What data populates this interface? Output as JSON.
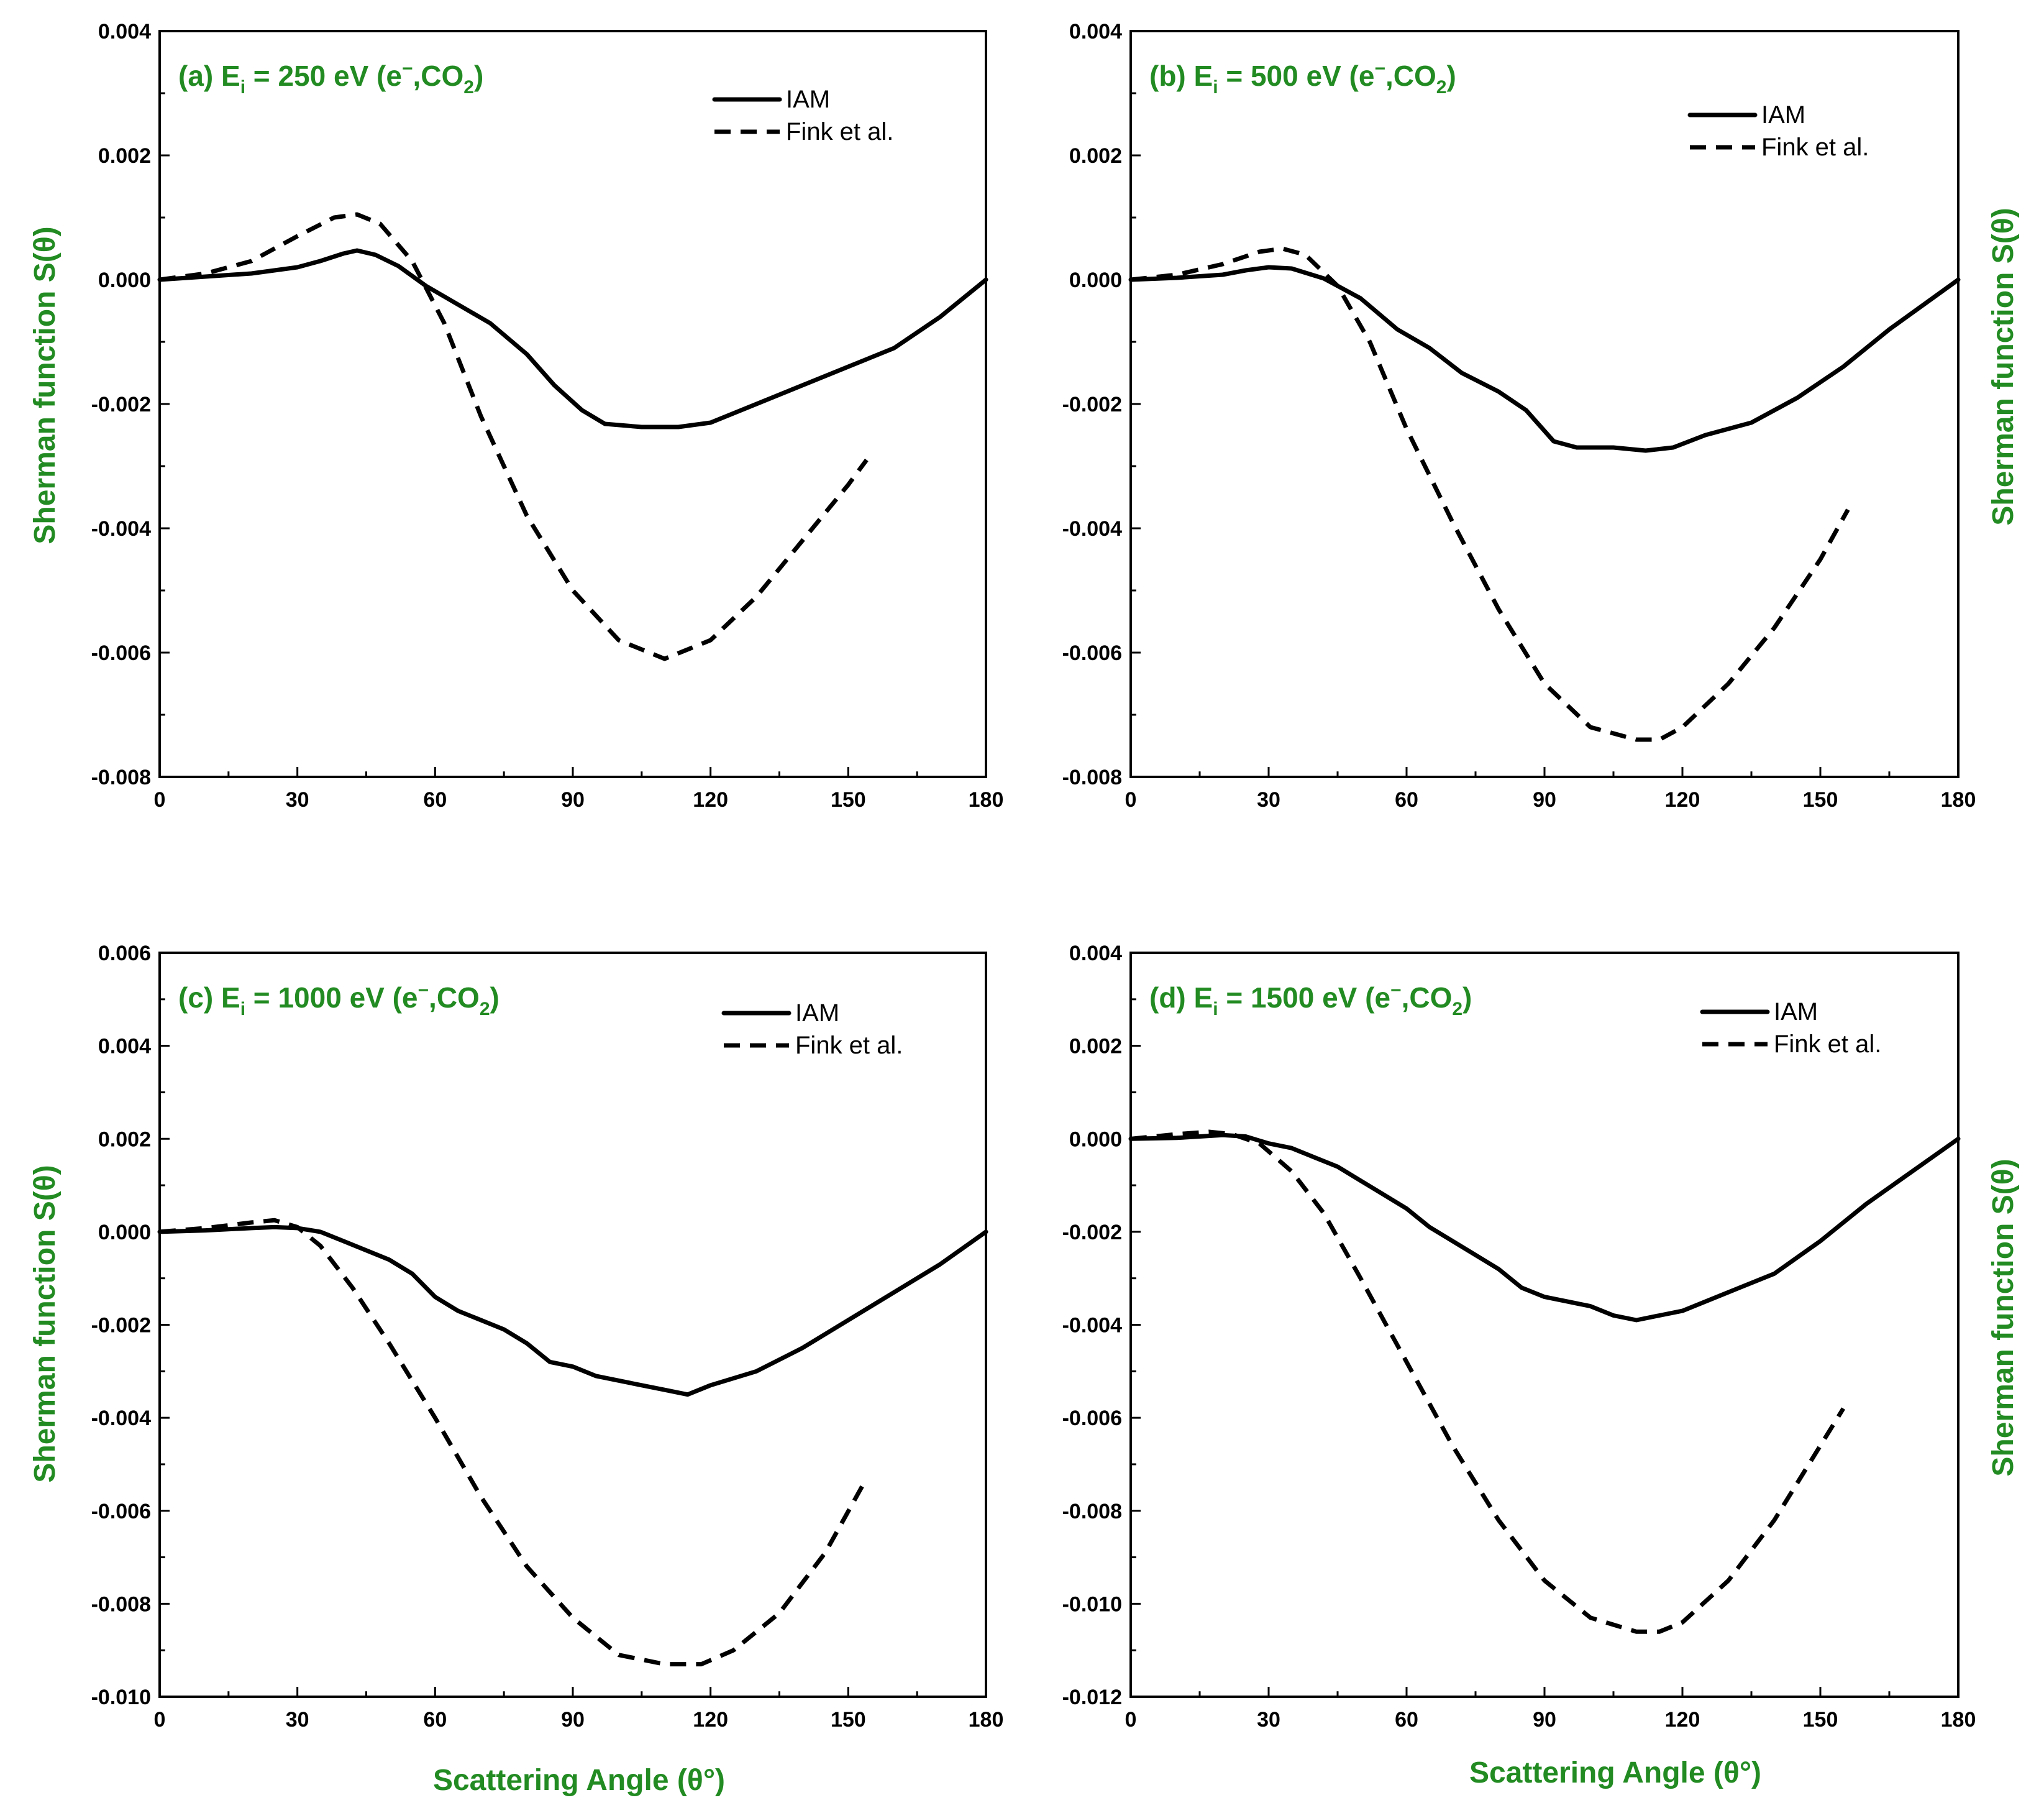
{
  "colors": {
    "axis_title": "#228B22",
    "panel_label": "#228B22",
    "series": "#000000"
  },
  "figure": {
    "xlabel_left": "Scattering Angle (θ°)",
    "xlabel_right": "Scattering Angle (θ°)",
    "ylabel_left_top": "Sherman function S(θ)",
    "ylabel_left_bottom": "Sherman function S(θ)",
    "ylabel_right_top": "Sherman function S(θ)",
    "ylabel_right_bottom": "Sherman function S(θ)"
  },
  "chart_data": [
    {
      "type": "line",
      "label_prefix": "(a) E",
      "label_sub": "i",
      "label_mid": " = 250 eV (e",
      "label_sup": "−",
      "label_mol": ",CO",
      "label_mol_sub": "2",
      "label_end": ")",
      "xlim": [
        0,
        180
      ],
      "ylim": [
        -0.008,
        0.004
      ],
      "xticks": [
        "0",
        "30",
        "60",
        "90",
        "120",
        "150",
        "180"
      ],
      "yticks": [
        "-0.008",
        "-0.006",
        "-0.004",
        "-0.002",
        "0.000",
        "0.002",
        "0.004"
      ],
      "legend": [
        "IAM",
        "Fink et al."
      ],
      "series": [
        {
          "name": "IAM",
          "style": "solid",
          "x": [
            0,
            10,
            20,
            30,
            35,
            40,
            43,
            47,
            52,
            58,
            65,
            72,
            80,
            86,
            92,
            97,
            105,
            113,
            120,
            130,
            140,
            150,
            160,
            170,
            180
          ],
          "y": [
            0,
            5e-05,
            0.0001,
            0.0002,
            0.0003,
            0.00042,
            0.00047,
            0.0004,
            0.00022,
            -0.0001,
            -0.0004,
            -0.0007,
            -0.0012,
            -0.0017,
            -0.0021,
            -0.00232,
            -0.00237,
            -0.00237,
            -0.0023,
            -0.002,
            -0.0017,
            -0.0014,
            -0.0011,
            -0.0006,
            0
          ]
        },
        {
          "name": "Fink et al.",
          "style": "dashed",
          "x": [
            0,
            10,
            20,
            30,
            38,
            43,
            48,
            55,
            62,
            70,
            80,
            90,
            100,
            110,
            120,
            130,
            140,
            150,
            154
          ],
          "y": [
            0,
            0.0001,
            0.0003,
            0.0007,
            0.001,
            0.00105,
            0.0009,
            0.0003,
            -0.0007,
            -0.0022,
            -0.0038,
            -0.005,
            -0.0058,
            -0.0061,
            -0.0058,
            -0.0051,
            -0.0042,
            -0.0033,
            -0.0029
          ]
        }
      ]
    },
    {
      "type": "line",
      "label_prefix": "(b) E",
      "label_sub": "i",
      "label_mid": " = 500 eV (e",
      "label_sup": "−",
      "label_mol": ",CO",
      "label_mol_sub": "2",
      "label_end": ")",
      "xlim": [
        0,
        180
      ],
      "ylim": [
        -0.008,
        0.004
      ],
      "xticks": [
        "0",
        "30",
        "60",
        "90",
        "120",
        "150",
        "180"
      ],
      "yticks": [
        "-0.008",
        "-0.006",
        "-0.004",
        "-0.002",
        "0.000",
        "0.002",
        "0.004"
      ],
      "legend": [
        "IAM",
        "Fink et al."
      ],
      "series": [
        {
          "name": "IAM",
          "style": "solid",
          "x": [
            0,
            10,
            20,
            25,
            30,
            35,
            42,
            50,
            58,
            65,
            72,
            80,
            86,
            92,
            97,
            105,
            112,
            118,
            125,
            135,
            145,
            155,
            165,
            180
          ],
          "y": [
            0,
            3e-05,
            8e-05,
            0.00015,
            0.0002,
            0.00018,
            2e-05,
            -0.0003,
            -0.0008,
            -0.0011,
            -0.0015,
            -0.0018,
            -0.0021,
            -0.0026,
            -0.0027,
            -0.0027,
            -0.00275,
            -0.0027,
            -0.0025,
            -0.0023,
            -0.0019,
            -0.0014,
            -0.0008,
            0
          ]
        },
        {
          "name": "Fink et al.",
          "style": "dashed",
          "x": [
            0,
            10,
            20,
            28,
            33,
            38,
            45,
            52,
            60,
            70,
            80,
            90,
            100,
            110,
            115,
            120,
            130,
            140,
            150,
            156
          ],
          "y": [
            0,
            8e-05,
            0.00025,
            0.00045,
            0.0005,
            0.0004,
            -0.0001,
            -0.001,
            -0.0024,
            -0.0039,
            -0.0053,
            -0.0065,
            -0.0072,
            -0.0074,
            -0.0074,
            -0.0072,
            -0.0065,
            -0.0056,
            -0.0045,
            -0.0037
          ]
        }
      ]
    },
    {
      "type": "line",
      "label_prefix": "(c) E",
      "label_sub": "i",
      "label_mid": " = 1000 eV (e",
      "label_sup": "−",
      "label_mol": ",CO",
      "label_mol_sub": "2",
      "label_end": ")",
      "xlim": [
        0,
        180
      ],
      "ylim": [
        -0.01,
        0.006
      ],
      "xticks": [
        "0",
        "30",
        "60",
        "90",
        "120",
        "150",
        "180"
      ],
      "yticks": [
        "-0.010",
        "-0.008",
        "-0.006",
        "-0.004",
        "-0.002",
        "0.000",
        "0.002",
        "0.004",
        "0.006"
      ],
      "legend": [
        "IAM",
        "Fink et al."
      ],
      "series": [
        {
          "name": "IAM",
          "style": "solid",
          "x": [
            0,
            10,
            20,
            25,
            30,
            35,
            40,
            45,
            50,
            55,
            60,
            65,
            70,
            75,
            80,
            85,
            90,
            95,
            100,
            105,
            110,
            115,
            120,
            130,
            140,
            150,
            160,
            170,
            180
          ],
          "y": [
            0,
            3e-05,
            8e-05,
            0.0001,
            8e-05,
            0,
            -0.0002,
            -0.0004,
            -0.0006,
            -0.0009,
            -0.0014,
            -0.0017,
            -0.0019,
            -0.0021,
            -0.0024,
            -0.0028,
            -0.0029,
            -0.0031,
            -0.0032,
            -0.0033,
            -0.0034,
            -0.0035,
            -0.0033,
            -0.003,
            -0.0025,
            -0.0019,
            -0.0013,
            -0.0007,
            0
          ]
        },
        {
          "name": "Fink et al.",
          "style": "dashed",
          "x": [
            0,
            10,
            20,
            25,
            30,
            35,
            42,
            50,
            60,
            70,
            80,
            90,
            100,
            110,
            118,
            125,
            135,
            145,
            154
          ],
          "y": [
            0,
            8e-05,
            0.0002,
            0.00025,
            0.0001,
            -0.0003,
            -0.0012,
            -0.0024,
            -0.004,
            -0.0057,
            -0.0072,
            -0.0083,
            -0.0091,
            -0.0093,
            -0.0093,
            -0.009,
            -0.0082,
            -0.0069,
            -0.0053
          ]
        }
      ]
    },
    {
      "type": "line",
      "label_prefix": "(d) E",
      "label_sub": "i",
      "label_mid": " = 1500 eV (e",
      "label_sup": "−",
      "label_mol": ",CO",
      "label_mol_sub": "2",
      "label_end": ")",
      "xlim": [
        0,
        180
      ],
      "ylim": [
        -0.012,
        0.004
      ],
      "xticks": [
        "0",
        "30",
        "60",
        "90",
        "120",
        "150",
        "180"
      ],
      "yticks": [
        "-0.012",
        "-0.010",
        "-0.008",
        "-0.006",
        "-0.004",
        "-0.002",
        "0.000",
        "0.002",
        "0.004"
      ],
      "legend": [
        "IAM",
        "Fink et al."
      ],
      "series": [
        {
          "name": "IAM",
          "style": "solid",
          "x": [
            0,
            10,
            20,
            25,
            30,
            35,
            40,
            45,
            50,
            55,
            60,
            65,
            70,
            75,
            80,
            85,
            90,
            95,
            100,
            105,
            110,
            115,
            120,
            130,
            140,
            150,
            160,
            170,
            180
          ],
          "y": [
            0,
            2e-05,
            8e-05,
            5e-05,
            -0.0001,
            -0.0002,
            -0.0004,
            -0.0006,
            -0.0009,
            -0.0012,
            -0.0015,
            -0.0019,
            -0.0022,
            -0.0025,
            -0.0028,
            -0.0032,
            -0.0034,
            -0.0035,
            -0.0036,
            -0.0038,
            -0.0039,
            -0.0038,
            -0.0037,
            -0.0033,
            -0.0029,
            -0.0022,
            -0.0014,
            -0.0007,
            0
          ]
        },
        {
          "name": "Fink et al.",
          "style": "dashed",
          "x": [
            0,
            10,
            17,
            22,
            28,
            35,
            42,
            50,
            60,
            70,
            80,
            90,
            100,
            110,
            115,
            120,
            130,
            140,
            150,
            155
          ],
          "y": [
            0,
            0.0001,
            0.00015,
            0.0001,
            -0.0001,
            -0.0007,
            -0.0016,
            -0.003,
            -0.0048,
            -0.0066,
            -0.0082,
            -0.0095,
            -0.0103,
            -0.0106,
            -0.0106,
            -0.0104,
            -0.0095,
            -0.0082,
            -0.0066,
            -0.0058
          ]
        }
      ]
    }
  ]
}
